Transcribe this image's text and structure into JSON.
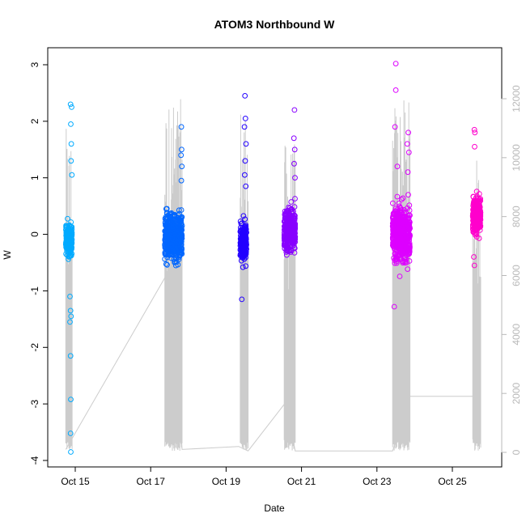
{
  "chart_data": {
    "type": "scatter",
    "title": "ATOM3 Northbound W",
    "xlabel": "Date",
    "ylabel": "W",
    "xlim": [
      "2023-10-14T00:00",
      "2023-10-26T00:00"
    ],
    "ylim": [
      -4,
      3
    ],
    "y2lim": [
      0,
      12000
    ],
    "x_ticks": [
      "Oct 15",
      "Oct 17",
      "Oct 19",
      "Oct 21",
      "Oct 23",
      "Oct 25"
    ],
    "x_tick_dates": [
      "2023-10-15T00:00",
      "2023-10-17T00:00",
      "2023-10-19T00:00",
      "2023-10-21T00:00",
      "2023-10-23T00:00",
      "2023-10-25T00:00"
    ],
    "y_ticks": [
      -4,
      -3,
      -2,
      -1,
      0,
      1,
      2,
      3
    ],
    "y2_ticks": [
      0,
      2000,
      4000,
      6000,
      8000,
      10000,
      12000
    ],
    "grid": false,
    "legend": "none",
    "series": [
      {
        "color": "#00aaff",
        "x_range": [
          "2023-10-14T18:00",
          "2023-10-14T22:00"
        ],
        "y_range": [
          -3.85,
          2.3
        ],
        "core_range": [
          -0.6,
          0.4
        ],
        "points": [
          {
            "x": "2023-10-14T21:00",
            "y": 2.3
          },
          {
            "x": "2023-10-14T21:40",
            "y": 2.25
          },
          {
            "x": "2023-10-14T21:10",
            "y": 1.95
          },
          {
            "x": "2023-10-14T21:30",
            "y": 1.6
          },
          {
            "x": "2023-10-14T21:20",
            "y": 1.3
          },
          {
            "x": "2023-10-14T21:50",
            "y": 1.05
          },
          {
            "x": "2023-10-14T20:40",
            "y": -1.1
          },
          {
            "x": "2023-10-14T21:00",
            "y": -1.35
          },
          {
            "x": "2023-10-14T21:20",
            "y": -1.45
          },
          {
            "x": "2023-10-14T20:40",
            "y": -1.55
          },
          {
            "x": "2023-10-14T21:00",
            "y": -2.15
          },
          {
            "x": "2023-10-14T21:10",
            "y": -2.92
          },
          {
            "x": "2023-10-14T21:00",
            "y": -3.52
          },
          {
            "x": "2023-10-14T21:10",
            "y": -3.85
          }
        ]
      },
      {
        "color": "#0066ff",
        "x_range": [
          "2023-10-17T09:00",
          "2023-10-17T20:00"
        ],
        "y_range": [
          -0.95,
          1.9
        ],
        "core_range": [
          -0.8,
          0.7
        ],
        "points": [
          {
            "x": "2023-10-17T19:30",
            "y": 1.9
          },
          {
            "x": "2023-10-17T19:40",
            "y": 1.5
          },
          {
            "x": "2023-10-17T19:20",
            "y": 1.4
          },
          {
            "x": "2023-10-17T19:50",
            "y": 1.2
          },
          {
            "x": "2023-10-17T19:30",
            "y": 0.95
          }
        ]
      },
      {
        "color": "#2200ff",
        "x_range": [
          "2023-10-19T09:00",
          "2023-10-19T13:00"
        ],
        "y_range": [
          -1.15,
          2.45
        ],
        "core_range": [
          -0.8,
          0.55
        ],
        "points": [
          {
            "x": "2023-10-19T12:00",
            "y": 2.45
          },
          {
            "x": "2023-10-19T12:20",
            "y": 2.05
          },
          {
            "x": "2023-10-19T11:40",
            "y": 1.9
          },
          {
            "x": "2023-10-19T12:40",
            "y": 1.6
          },
          {
            "x": "2023-10-19T12:10",
            "y": 1.3
          },
          {
            "x": "2023-10-19T11:50",
            "y": 1.05
          },
          {
            "x": "2023-10-19T12:30",
            "y": 0.85
          },
          {
            "x": "2023-10-19T10:00",
            "y": -1.15
          }
        ]
      },
      {
        "color": "#8800ff",
        "x_range": [
          "2023-10-20T13:00",
          "2023-10-20T20:00"
        ],
        "y_range": [
          -0.85,
          2.2
        ],
        "core_range": [
          -0.6,
          0.8
        ],
        "points": [
          {
            "x": "2023-10-20T19:30",
            "y": 2.2
          },
          {
            "x": "2023-10-20T19:10",
            "y": 1.7
          },
          {
            "x": "2023-10-20T19:40",
            "y": 1.5
          },
          {
            "x": "2023-10-20T19:20",
            "y": 1.25
          },
          {
            "x": "2023-10-20T19:50",
            "y": 1.0
          }
        ]
      },
      {
        "color": "#dd00ff",
        "x_range": [
          "2023-10-23T10:00",
          "2023-10-23T21:00"
        ],
        "y_range": [
          -1.3,
          3.02
        ],
        "core_range": [
          -0.9,
          0.9
        ],
        "points": [
          {
            "x": "2023-10-23T12:00",
            "y": 3.02
          },
          {
            "x": "2023-10-23T12:00",
            "y": 2.55
          },
          {
            "x": "2023-10-23T11:30",
            "y": 1.9
          },
          {
            "x": "2023-10-23T20:00",
            "y": 1.8
          },
          {
            "x": "2023-10-23T19:20",
            "y": 1.6
          },
          {
            "x": "2023-10-23T20:20",
            "y": 1.45
          },
          {
            "x": "2023-10-23T13:00",
            "y": 1.2
          },
          {
            "x": "2023-10-23T19:40",
            "y": 1.1
          },
          {
            "x": "2023-10-23T11:00",
            "y": -1.28
          }
        ]
      },
      {
        "color": "#ff00cc",
        "x_range": [
          "2023-10-25T13:00",
          "2023-10-25T18:00"
        ],
        "y_range": [
          -0.55,
          1.85
        ],
        "core_range": [
          -0.3,
          1.0
        ],
        "points": [
          {
            "x": "2023-10-25T14:00",
            "y": 1.85
          },
          {
            "x": "2023-10-25T14:20",
            "y": 1.8
          },
          {
            "x": "2023-10-25T14:10",
            "y": 1.55
          },
          {
            "x": "2023-10-25T13:40",
            "y": -0.4
          },
          {
            "x": "2023-10-25T14:00",
            "y": -0.55
          }
        ]
      }
    ],
    "secondary_line": {
      "color": "#cccccc",
      "axis": "right",
      "points": [
        {
          "x": "2023-10-14T18:00",
          "y": 100
        },
        {
          "x": "2023-10-17T12:00",
          "y": 6200
        },
        {
          "x": "2023-10-17T20:00",
          "y": 100
        },
        {
          "x": "2023-10-19T08:00",
          "y": 200
        },
        {
          "x": "2023-10-19T14:00",
          "y": 50
        },
        {
          "x": "2023-10-20T14:00",
          "y": 1700
        },
        {
          "x": "2023-10-20T20:00",
          "y": 50
        },
        {
          "x": "2023-10-23T10:00",
          "y": 50
        },
        {
          "x": "2023-10-23T21:00",
          "y": 1900
        },
        {
          "x": "2023-10-25T13:00",
          "y": 1900
        },
        {
          "x": "2023-10-25T18:00",
          "y": 2500
        }
      ],
      "bursts": [
        {
          "x_range": [
            "2023-10-14T18:00",
            "2023-10-14T22:00"
          ],
          "y_range": [
            50,
            11000
          ]
        },
        {
          "x_range": [
            "2023-10-17T09:00",
            "2023-10-17T20:00"
          ],
          "y_range": [
            50,
            12000
          ]
        },
        {
          "x_range": [
            "2023-10-19T09:00",
            "2023-10-19T14:00"
          ],
          "y_range": [
            50,
            12000
          ]
        },
        {
          "x_range": [
            "2023-10-20T13:00",
            "2023-10-20T20:00"
          ],
          "y_range": [
            50,
            10500
          ]
        },
        {
          "x_range": [
            "2023-10-23T10:00",
            "2023-10-23T21:00"
          ],
          "y_range": [
            50,
            12000
          ]
        },
        {
          "x_range": [
            "2023-10-25T13:00",
            "2023-10-25T18:00"
          ],
          "y_range": [
            50,
            10000
          ]
        }
      ]
    }
  }
}
